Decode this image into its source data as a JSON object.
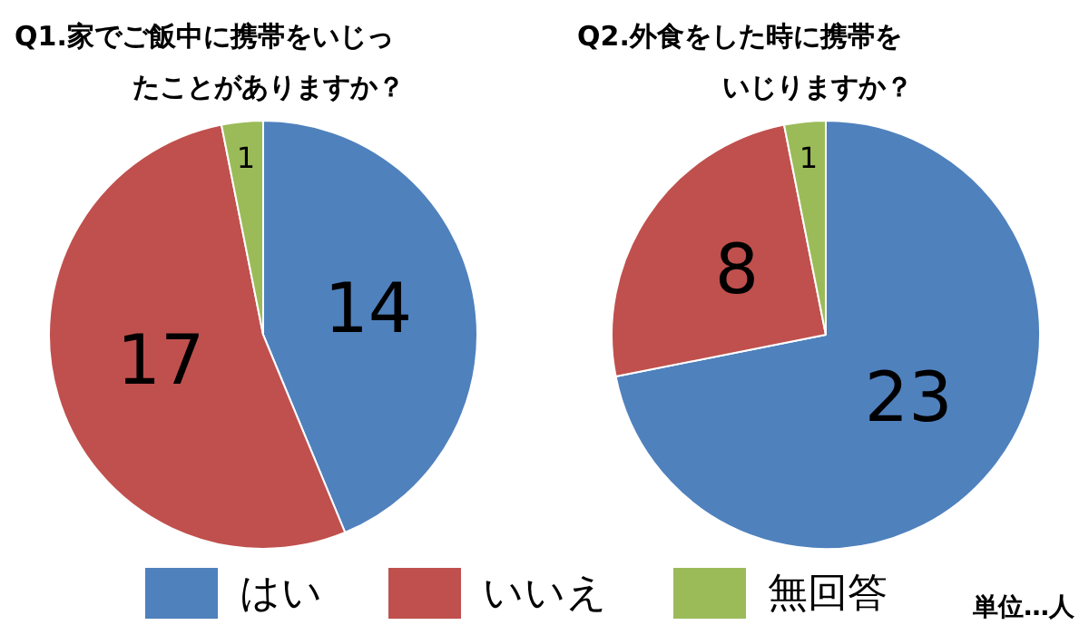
{
  "chart_data": [
    {
      "type": "pie",
      "title": "Q1.家でご飯中に携帯をいじったことがありますか？",
      "categories": [
        "はい",
        "いいえ",
        "無回答"
      ],
      "values": [
        14,
        17,
        1
      ],
      "colors": [
        "#4f81bd",
        "#c0504d",
        "#9bbb59"
      ],
      "data_labels": true,
      "legend": "bottom"
    },
    {
      "type": "pie",
      "title": "Q2.外食をした時に携帯をいじりますか？",
      "categories": [
        null,
        null,
        null
      ],
      "values": [
        23,
        8,
        1
      ],
      "colors": [
        "#4f81bd",
        "#c0504d",
        "#9bbb59"
      ],
      "data_labels": true,
      "annotations": [
        "単位…人"
      ]
    }
  ]
}
